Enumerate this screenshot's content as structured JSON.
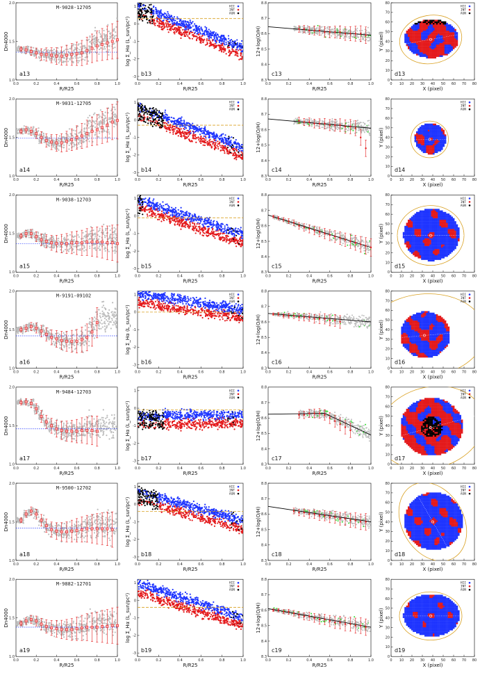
{
  "colors": {
    "grey": "#bdbdbd",
    "red": "#e41a1c",
    "blue": "#1f35ff",
    "black": "#000000",
    "green": "#33dd33",
    "gold": "#d9a020",
    "frame": "#000000"
  },
  "legend_labels": [
    "HII",
    "INT",
    "AGN"
  ],
  "chart_data": [
    {
      "type": "scatter",
      "column": "Dn4000 radial profile",
      "ylabel": "Dn4000",
      "xlabel": "R/R25",
      "xlim": [
        0,
        1
      ],
      "ylim": [
        1.0,
        2.0
      ],
      "xticks": [
        "0.0",
        "0.2",
        "0.4",
        "0.6",
        "0.8",
        "1.0"
      ],
      "yticks": [
        "1.0",
        "1.5",
        "2.0"
      ],
      "panels": [
        {
          "label": "a13",
          "title": "M-9028-12705",
          "ref": 1.36,
          "x": [
            0.05,
            0.1,
            0.15,
            0.2,
            0.25,
            0.3,
            0.35,
            0.4,
            0.45,
            0.5,
            0.55,
            0.6,
            0.65,
            0.7,
            0.75,
            0.8,
            0.85,
            0.9,
            0.95,
            1.0
          ],
          "y": [
            1.4,
            1.39,
            1.37,
            1.35,
            1.33,
            1.33,
            1.32,
            1.31,
            1.31,
            1.32,
            1.33,
            1.34,
            1.35,
            1.38,
            1.41,
            1.44,
            1.46,
            1.48,
            1.5,
            1.52
          ]
        },
        {
          "label": "a14",
          "title": "M-9031-12705",
          "ref": 1.49,
          "x": [
            0.05,
            0.1,
            0.15,
            0.2,
            0.25,
            0.3,
            0.35,
            0.4,
            0.45,
            0.5,
            0.55,
            0.6,
            0.65,
            0.7,
            0.75,
            0.8,
            0.85,
            0.9,
            0.95,
            1.0
          ],
          "y": [
            1.58,
            1.6,
            1.58,
            1.55,
            1.5,
            1.46,
            1.44,
            1.43,
            1.43,
            1.45,
            1.47,
            1.5,
            1.52,
            1.55,
            1.58,
            1.6,
            1.63,
            1.66,
            1.7,
            1.72
          ]
        },
        {
          "label": "a15",
          "title": "M-9038-12703",
          "ref": 1.37,
          "x": [
            0.05,
            0.1,
            0.15,
            0.2,
            0.25,
            0.3,
            0.35,
            0.4,
            0.45,
            0.5,
            0.55,
            0.6,
            0.65,
            0.7,
            0.75,
            0.8,
            0.85,
            0.9,
            0.95,
            1.0
          ],
          "y": [
            1.47,
            1.5,
            1.5,
            1.46,
            1.42,
            1.4,
            1.38,
            1.37,
            1.37,
            1.37,
            1.38,
            1.38,
            1.38,
            1.39,
            1.39,
            1.39,
            1.39,
            1.38,
            1.38,
            1.37
          ]
        },
        {
          "label": "a16",
          "title": "M-9191-09102",
          "ref": 1.42,
          "x": [
            0.05,
            0.1,
            0.15,
            0.2,
            0.25,
            0.3,
            0.35,
            0.4,
            0.45,
            0.5,
            0.55,
            0.6,
            0.65,
            0.7,
            0.75,
            0.8
          ],
          "y": [
            1.5,
            1.52,
            1.54,
            1.52,
            1.48,
            1.44,
            1.4,
            1.38,
            1.36,
            1.35,
            1.35,
            1.35,
            1.37,
            1.4,
            1.47,
            1.59
          ]
        },
        {
          "label": "a17",
          "title": "M-9484-12703",
          "ref": 1.46,
          "x": [
            0.05,
            0.1,
            0.15,
            0.2,
            0.25,
            0.3,
            0.35,
            0.4,
            0.45,
            0.5,
            0.55,
            0.6,
            0.65,
            0.7,
            0.75,
            0.8
          ],
          "y": [
            1.8,
            1.81,
            1.79,
            1.72,
            1.62,
            1.55,
            1.5,
            1.46,
            1.44,
            1.43,
            1.43,
            1.43,
            1.44,
            1.44,
            1.44,
            1.43
          ]
        },
        {
          "label": "a18",
          "title": "M-9500-12702",
          "ref": 1.42,
          "x": [
            0.05,
            0.1,
            0.15,
            0.2,
            0.25,
            0.3,
            0.35,
            0.4,
            0.45,
            0.5,
            0.55,
            0.6,
            0.65,
            0.7,
            0.75,
            0.8,
            0.85,
            0.9,
            0.95
          ],
          "y": [
            1.52,
            1.6,
            1.64,
            1.6,
            1.52,
            1.45,
            1.4,
            1.38,
            1.37,
            1.37,
            1.38,
            1.39,
            1.4,
            1.41,
            1.41,
            1.41,
            1.41,
            1.41,
            1.4
          ]
        },
        {
          "label": "a19",
          "title": "M-9882-12701",
          "ref": 1.38,
          "x": [
            0.05,
            0.1,
            0.15,
            0.2,
            0.25,
            0.3,
            0.35,
            0.4,
            0.45,
            0.5,
            0.55,
            0.6,
            0.65,
            0.7,
            0.75,
            0.8,
            0.85,
            0.9,
            0.95,
            1.0
          ],
          "y": [
            1.43,
            1.46,
            1.48,
            1.46,
            1.42,
            1.39,
            1.37,
            1.36,
            1.35,
            1.35,
            1.35,
            1.36,
            1.37,
            1.38,
            1.38,
            1.38,
            1.39,
            1.39,
            1.4,
            1.4
          ]
        }
      ]
    },
    {
      "type": "scatter",
      "column": "H-alpha surface brightness",
      "ylabel": "log Σ_Hα (L_sun/pc²)",
      "xlabel": "R/R25",
      "xlim": [
        0,
        1
      ],
      "ylim": [
        -3.2,
        1.2
      ],
      "xticks": [
        "0.0",
        "0.2",
        "0.4",
        "0.6",
        "0.8",
        "1.0"
      ],
      "yticks": [
        "1",
        "0",
        "-1",
        "-2",
        "-3"
      ],
      "panels": [
        {
          "label": "b13",
          "ref": 0.3,
          "start": 0.9,
          "slope": -2.4,
          "innerAGN": 0.15
        },
        {
          "label": "b14",
          "ref": -0.3,
          "start": 0.6,
          "slope": -2.3,
          "innerAGN": 0.25
        },
        {
          "label": "b15",
          "ref": -0.1,
          "start": 0.8,
          "slope": -2.0,
          "innerAGN": 0.05
        },
        {
          "label": "b16",
          "ref": 0.0,
          "start": 0.9,
          "slope": -0.9,
          "innerAGN": 0.0
        },
        {
          "label": "b17",
          "ref": -0.1,
          "start": -0.6,
          "slope": 0.1,
          "innerAGN": 0.25
        },
        {
          "label": "b18",
          "ref": -0.4,
          "start": 0.6,
          "slope": -1.7,
          "innerAGN": 0.2
        },
        {
          "label": "b19",
          "ref": -0.4,
          "start": 0.8,
          "slope": -1.9,
          "innerAGN": 0.0
        }
      ]
    },
    {
      "type": "scatter",
      "column": "oxygen abundance gradient",
      "ylabel": "12+log(O/H)",
      "xlabel": "R/R25",
      "xlim": [
        0,
        1
      ],
      "ylim": [
        8.3,
        8.8
      ],
      "xticks": [
        "0.0",
        "0.2",
        "0.4",
        "0.6",
        "0.8",
        "1.0"
      ],
      "yticks": [
        "8.8",
        "8.7",
        "8.6",
        "8.5",
        "8.4",
        "8.3"
      ],
      "panels": [
        {
          "label": "c13",
          "fit": [
            [
              0.0,
              8.645
            ],
            [
              1.0,
              8.59
            ]
          ],
          "x0": 0.25,
          "x": [
            0.3,
            0.35,
            0.4,
            0.45,
            0.5,
            0.55,
            0.6,
            0.65,
            0.7,
            0.75,
            0.8,
            0.85,
            0.9,
            0.95
          ],
          "y": [
            8.63,
            8.63,
            8.62,
            8.62,
            8.62,
            8.61,
            8.61,
            8.61,
            8.61,
            8.6,
            8.6,
            8.6,
            8.6,
            8.59
          ]
        },
        {
          "label": "c14",
          "fit": [
            [
              0.0,
              8.67
            ],
            [
              1.0,
              8.61
            ]
          ],
          "x0": 0.25,
          "x": [
            0.3,
            0.35,
            0.4,
            0.45,
            0.5,
            0.55,
            0.6,
            0.65,
            0.7,
            0.75,
            0.8,
            0.85,
            0.9,
            0.95
          ],
          "y": [
            8.66,
            8.65,
            8.65,
            8.64,
            8.64,
            8.64,
            8.63,
            8.63,
            8.63,
            8.62,
            8.62,
            8.61,
            8.55,
            8.48
          ]
        },
        {
          "label": "c15",
          "fit": [
            [
              0.0,
              8.67
            ],
            [
              1.0,
              8.46
            ]
          ],
          "x0": 0.05,
          "x": [
            0.05,
            0.1,
            0.15,
            0.2,
            0.25,
            0.3,
            0.35,
            0.4,
            0.45,
            0.5,
            0.55,
            0.6,
            0.65,
            0.7,
            0.75,
            0.8,
            0.85,
            0.9,
            0.95,
            1.0
          ],
          "y": [
            8.66,
            8.65,
            8.64,
            8.63,
            8.62,
            8.6,
            8.59,
            8.58,
            8.57,
            8.56,
            8.55,
            8.54,
            8.53,
            8.52,
            8.51,
            8.5,
            8.49,
            8.48,
            8.47,
            8.46
          ]
        },
        {
          "label": "c16",
          "fit": [
            [
              0.0,
              8.655
            ],
            [
              1.0,
              8.6
            ]
          ],
          "x0": 0.05,
          "x": [
            0.05,
            0.1,
            0.15,
            0.2,
            0.25,
            0.3,
            0.35,
            0.4,
            0.45,
            0.5,
            0.55,
            0.6,
            0.65,
            0.7
          ],
          "y": [
            8.65,
            8.65,
            8.64,
            8.64,
            8.64,
            8.63,
            8.63,
            8.63,
            8.62,
            8.62,
            8.62,
            8.61,
            8.61,
            8.6
          ]
        },
        {
          "label": "c17",
          "fit": [
            [
              0.0,
              8.625
            ],
            [
              0.55,
              8.63
            ],
            [
              1.0,
              8.49
            ]
          ],
          "x0": 0.3,
          "x": [
            0.3,
            0.35,
            0.4,
            0.45,
            0.5,
            0.55,
            0.6,
            0.65,
            0.7,
            0.75,
            0.8
          ],
          "y": [
            8.62,
            8.62,
            8.63,
            8.63,
            8.63,
            8.62,
            8.6,
            8.58,
            8.56,
            8.54,
            8.52
          ]
        },
        {
          "label": "c18",
          "fit": [
            [
              0.0,
              8.65
            ],
            [
              1.0,
              8.55
            ]
          ],
          "x0": 0.25,
          "x": [
            0.25,
            0.3,
            0.35,
            0.4,
            0.45,
            0.5,
            0.55,
            0.6,
            0.65,
            0.7,
            0.75,
            0.8,
            0.85,
            0.9,
            0.95
          ],
          "y": [
            8.62,
            8.61,
            8.61,
            8.6,
            8.6,
            8.59,
            8.59,
            8.58,
            8.58,
            8.57,
            8.57,
            8.56,
            8.56,
            8.55,
            8.55
          ]
        },
        {
          "label": "c19",
          "fit": [
            [
              0.0,
              8.61
            ],
            [
              1.0,
              8.49
            ]
          ],
          "x0": 0.05,
          "x": [
            0.05,
            0.1,
            0.15,
            0.2,
            0.25,
            0.3,
            0.35,
            0.4,
            0.45,
            0.5,
            0.55,
            0.6,
            0.65,
            0.7,
            0.75,
            0.8,
            0.85,
            0.9,
            0.95
          ],
          "y": [
            8.6,
            8.6,
            8.59,
            8.59,
            8.58,
            8.57,
            8.56,
            8.56,
            8.55,
            8.54,
            8.54,
            8.53,
            8.52,
            8.52,
            8.51,
            8.51,
            8.5,
            8.5,
            8.49
          ]
        }
      ]
    },
    {
      "type": "scatter",
      "column": "spatial classification map",
      "ylabel": "Y (pixel)",
      "xlabel": "X (pixel)",
      "xlim": [
        0,
        80
      ],
      "ylim": [
        0,
        80
      ],
      "xticks": [
        "0",
        "10",
        "20",
        "30",
        "40",
        "50",
        "60",
        "70",
        "80"
      ],
      "yticks": [
        "0",
        "10",
        "20",
        "30",
        "40",
        "50",
        "60",
        "70",
        "80"
      ],
      "panels": [
        {
          "label": "d13",
          "cx": 38,
          "cy": 42,
          "rx": 26,
          "ry": 20,
          "erx": 30,
          "ery": 25,
          "rot": -10,
          "blueFrac": 0.35
        },
        {
          "label": "d14",
          "cx": 37,
          "cy": 38,
          "rx": 15,
          "ry": 16,
          "erx": 18,
          "ery": 19,
          "rot": 0,
          "blueFrac": 0.6
        },
        {
          "label": "d15",
          "cx": 38,
          "cy": 38,
          "rx": 27,
          "ry": 27,
          "erx": 32,
          "ery": 31,
          "rot": 0,
          "blueFrac": 0.7
        },
        {
          "label": "d16",
          "cx": 32,
          "cy": 34,
          "rx": 24,
          "ry": 24,
          "erx": 58,
          "ery": 43,
          "rot": -5,
          "blueFrac": 0.55
        },
        {
          "label": "d17",
          "cx": 38,
          "cy": 38,
          "rx": 30,
          "ry": 30,
          "erx": 52,
          "ery": 42,
          "rot": -15,
          "blueFrac": 0.35
        },
        {
          "label": "d18",
          "cx": 40,
          "cy": 40,
          "rx": 28,
          "ry": 30,
          "erx": 40,
          "ery": 32,
          "rot": 60,
          "blueFrac": 0.7
        },
        {
          "label": "d19",
          "cx": 38,
          "cy": 42,
          "rx": 27,
          "ry": 22,
          "erx": 30,
          "ery": 25,
          "rot": 0,
          "blueFrac": 0.85
        }
      ]
    }
  ]
}
